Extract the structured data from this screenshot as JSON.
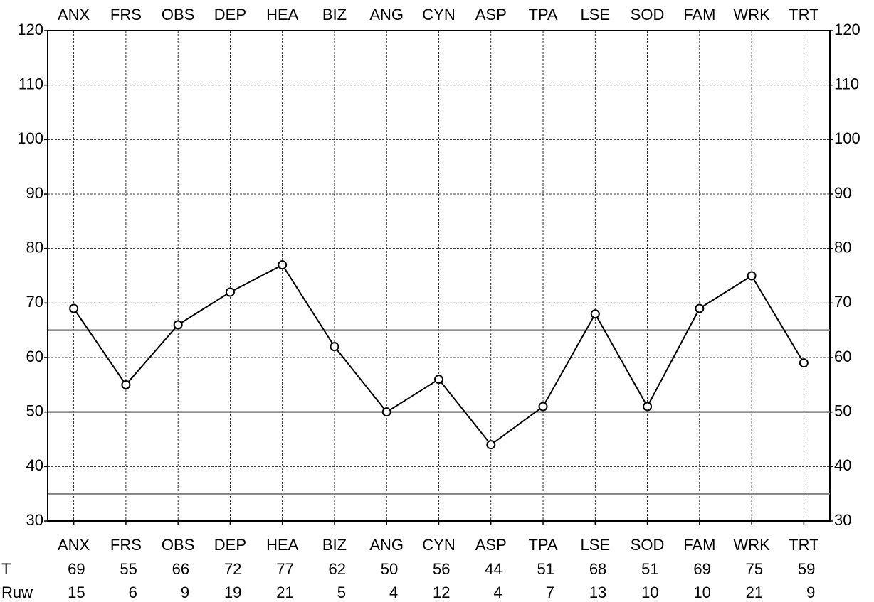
{
  "chart_data": {
    "type": "line",
    "categories": [
      "ANX",
      "FRS",
      "OBS",
      "DEP",
      "HEA",
      "BIZ",
      "ANG",
      "CYN",
      "ASP",
      "TPA",
      "LSE",
      "SOD",
      "FAM",
      "WRK",
      "TRT"
    ],
    "series": [
      {
        "name": "T",
        "color": "#000000",
        "values": [
          69,
          55,
          66,
          72,
          77,
          62,
          50,
          56,
          44,
          51,
          68,
          51,
          69,
          75,
          59
        ]
      }
    ],
    "raw": {
      "name": "Ruw",
      "values": [
        15,
        6,
        9,
        19,
        21,
        5,
        4,
        12,
        4,
        7,
        13,
        10,
        10,
        21,
        9
      ]
    },
    "ylim": [
      30,
      120
    ],
    "yticks": [
      30,
      40,
      50,
      60,
      70,
      80,
      90,
      100,
      110,
      120
    ],
    "reference_lines": [
      65,
      50,
      35
    ],
    "reference_color": "#808080",
    "grid": true
  }
}
